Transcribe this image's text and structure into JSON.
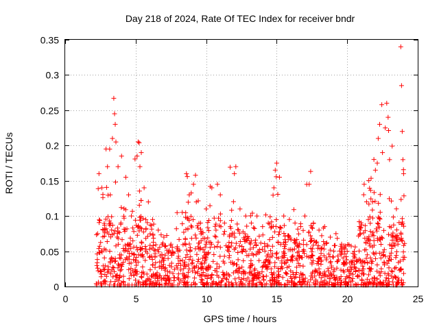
{
  "chart_data": {
    "type": "scatter",
    "title": "Day 218 of 2024, Rate Of TEC Index for receiver bndr",
    "xlabel": "GPS time / hours",
    "ylabel": "ROTI / TECUs",
    "xlim": [
      0,
      25
    ],
    "ylim": [
      0,
      0.35
    ],
    "xticks": [
      0,
      5,
      10,
      15,
      20,
      25
    ],
    "xtick_labels": [
      "0",
      "5",
      "10",
      "15",
      "20",
      "25"
    ],
    "yticks": [
      0,
      0.05,
      0.1,
      0.15,
      0.2,
      0.25,
      0.3,
      0.35
    ],
    "ytick_labels": [
      "0",
      "0.05",
      "0.1",
      "0.15",
      "0.2",
      "0.25",
      "0.3",
      "0.35"
    ],
    "grid": true,
    "marker": "+",
    "color": "#ff0000",
    "series": [
      {
        "name": "ROTI",
        "points": [
          [
            2.3,
            0.075
          ],
          [
            2.4,
            0.16
          ],
          [
            2.6,
            0.14
          ],
          [
            2.9,
            0.195
          ],
          [
            3.0,
            0.17
          ],
          [
            3.2,
            0.13
          ],
          [
            3.35,
            0.21
          ],
          [
            3.45,
            0.267
          ],
          [
            3.5,
            0.245
          ],
          [
            3.55,
            0.23
          ],
          [
            3.6,
            0.205
          ],
          [
            3.75,
            0.17
          ],
          [
            4.0,
            0.185
          ],
          [
            4.3,
            0.155
          ],
          [
            4.5,
            0.13
          ],
          [
            4.7,
            0.1
          ],
          [
            5.1,
            0.185
          ],
          [
            5.3,
            0.17
          ],
          [
            5.4,
            0.19
          ],
          [
            5.6,
            0.14
          ],
          [
            5.9,
            0.12
          ],
          [
            6.2,
            0.095
          ],
          [
            6.6,
            0.08
          ],
          [
            7.0,
            0.07
          ],
          [
            7.5,
            0.06
          ],
          [
            8.0,
            0.05
          ],
          [
            8.6,
            0.16
          ],
          [
            8.8,
            0.13
          ],
          [
            9.1,
            0.145
          ],
          [
            9.3,
            0.12
          ],
          [
            9.6,
            0.09
          ],
          [
            10.0,
            0.11
          ],
          [
            10.4,
            0.14
          ],
          [
            10.8,
            0.145
          ],
          [
            11.0,
            0.13
          ],
          [
            11.3,
            0.09
          ],
          [
            11.7,
            0.085
          ],
          [
            12.0,
            0.16
          ],
          [
            12.1,
            0.17
          ],
          [
            12.4,
            0.11
          ],
          [
            12.8,
            0.1
          ],
          [
            13.2,
            0.09
          ],
          [
            13.6,
            0.1
          ],
          [
            14.0,
            0.085
          ],
          [
            14.4,
            0.09
          ],
          [
            14.8,
            0.14
          ],
          [
            14.9,
            0.165
          ],
          [
            15.0,
            0.175
          ],
          [
            15.2,
            0.155
          ],
          [
            15.5,
            0.1
          ],
          [
            15.9,
            0.095
          ],
          [
            16.3,
            0.09
          ],
          [
            16.7,
            0.085
          ],
          [
            17.0,
            0.1
          ],
          [
            17.3,
            0.145
          ],
          [
            17.6,
            0.09
          ],
          [
            18.0,
            0.08
          ],
          [
            18.4,
            0.085
          ],
          [
            18.8,
            0.07
          ],
          [
            19.2,
            0.075
          ],
          [
            19.6,
            0.06
          ],
          [
            20.0,
            0.05
          ],
          [
            20.5,
            0.05
          ],
          [
            20.9,
            0.08
          ],
          [
            21.2,
            0.145
          ],
          [
            21.5,
            0.095
          ],
          [
            21.8,
            0.12
          ],
          [
            22.0,
            0.165
          ],
          [
            22.2,
            0.21
          ],
          [
            22.3,
            0.23
          ],
          [
            22.5,
            0.19
          ],
          [
            22.7,
            0.225
          ],
          [
            22.8,
            0.26
          ],
          [
            22.9,
            0.24
          ],
          [
            23.0,
            0.18
          ],
          [
            23.3,
            0.07
          ],
          [
            23.6,
            0.06
          ],
          [
            23.8,
            0.34
          ],
          [
            23.85,
            0.285
          ],
          [
            23.9,
            0.22
          ],
          [
            23.95,
            0.18
          ],
          [
            24.0,
            0.16
          ]
        ]
      }
    ]
  }
}
